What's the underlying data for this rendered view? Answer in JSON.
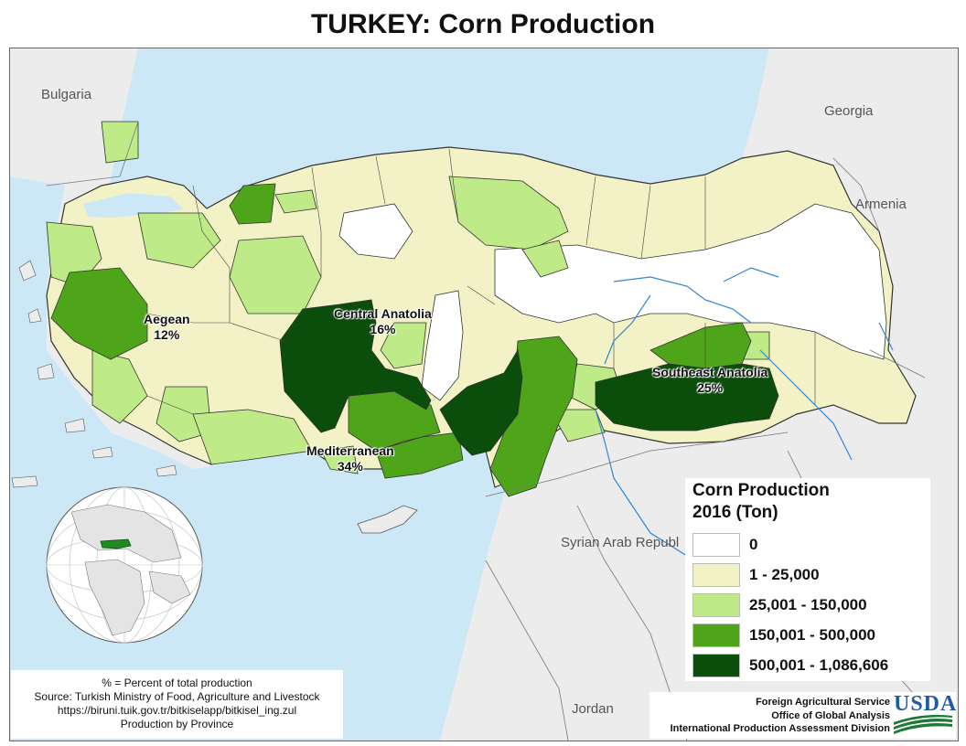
{
  "title": "TURKEY: Corn Production",
  "countries": {
    "bulgaria": "Bulgaria",
    "georgia": "Georgia",
    "armenia": "Armenia",
    "syria": "Syrian Arab Republ",
    "jordan": "Jordan"
  },
  "regions": [
    {
      "name": "Aegean",
      "pct": "12%"
    },
    {
      "name": "Central Anatolia",
      "pct": "16%"
    },
    {
      "name": "Mediterranean",
      "pct": "34%"
    },
    {
      "name": "Southeast Anatolia",
      "pct": "25%"
    }
  ],
  "legend": {
    "title_line1": "Corn Production",
    "title_line2": "2016 (Ton)",
    "classes": [
      {
        "label": "0",
        "color": "#ffffff"
      },
      {
        "label": "1 - 25,000",
        "color": "#f2f2c6"
      },
      {
        "label": "25,001 - 150,000",
        "color": "#bfea88"
      },
      {
        "label": "150,001 - 500,000",
        "color": "#4ea51a"
      },
      {
        "label": "500,001 - 1,086,606",
        "color": "#0b4d0b"
      }
    ]
  },
  "source": {
    "line1": "% = Percent of total production",
    "line2": "Source: Turkish Ministry of Food, Agriculture and Livestock",
    "line3": "https://biruni.tuik.gov.tr/bitkiselapp/bitkisel_ing.zul",
    "line4": "Production by Province"
  },
  "agency": {
    "line1": "Foreign Agricultural Service",
    "line2": "Office of Global Analysis",
    "line3": "International Production Assessment Division",
    "logo_text": "USDA"
  },
  "colors": {
    "sea": "#cce8f7",
    "land": "#ececec",
    "river": "#2f86d6"
  }
}
